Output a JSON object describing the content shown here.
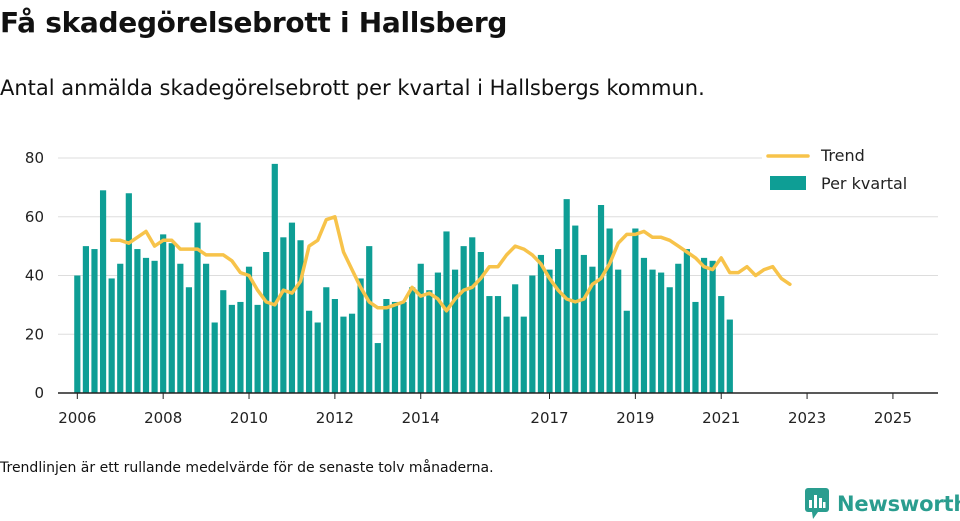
{
  "header": {
    "title": "Få skadegörelsebrott i Hallsberg",
    "subtitle": "Antal anmälda skadegörelsebrott per kvartal i Hallsbergs kommun."
  },
  "footer": {
    "note": "Trendlinjen är ett rullande medelvärde för de senaste tolv månaderna.",
    "brand": "Newsworthy"
  },
  "colors": {
    "bar": "#0e9e95",
    "trend": "#f7c34a",
    "grid": "#dddddd",
    "brand": "#2a9d8f"
  },
  "icons": {
    "brand_logo": "bar-chart-speech-bubble-icon"
  },
  "chart_data": {
    "type": "bar",
    "ylim": [
      0,
      80
    ],
    "yticks": [
      0,
      20,
      40,
      60,
      80
    ],
    "xlim": [
      2005.55,
      2026.05
    ],
    "xticks": [
      {
        "value": 2006,
        "label": "2006"
      },
      {
        "value": 2008,
        "label": "2008"
      },
      {
        "value": 2010,
        "label": "2010"
      },
      {
        "value": 2012,
        "label": "2012"
      },
      {
        "value": 2014,
        "label": "2014"
      },
      {
        "value": 2017,
        "label": "2017"
      },
      {
        "value": 2019,
        "label": "2019"
      },
      {
        "value": 2021,
        "label": "2021"
      },
      {
        "value": 2023,
        "label": "2023"
      },
      {
        "value": 2025,
        "label": "2025"
      }
    ],
    "grid": true,
    "legend_position": "top-right",
    "legend": [
      "Trend",
      "Per kvartal"
    ],
    "series": [
      {
        "name": "Per kvartal",
        "type": "bar",
        "start_year": 2006,
        "step": 0.2,
        "values": [
          40,
          50,
          49,
          69,
          39,
          44,
          68,
          49,
          46,
          45,
          54,
          51,
          44,
          36,
          58,
          44,
          24,
          35,
          30,
          31,
          43,
          30,
          48,
          78,
          53,
          58,
          52,
          28,
          24,
          36,
          32,
          26,
          27,
          39,
          50,
          17,
          32,
          31,
          31,
          36,
          44,
          35,
          41,
          55,
          42,
          50,
          53,
          48,
          33,
          33,
          26,
          37,
          26,
          40,
          47,
          42,
          49,
          66,
          57,
          47,
          43,
          64,
          56,
          42,
          28,
          56,
          46,
          42,
          41,
          36,
          44,
          49,
          31,
          46,
          45,
          33,
          25
        ]
      },
      {
        "name": "Trend",
        "type": "line",
        "points": [
          [
            2006.8,
            52
          ],
          [
            2007.0,
            52
          ],
          [
            2007.2,
            51
          ],
          [
            2007.4,
            53
          ],
          [
            2007.6,
            55
          ],
          [
            2007.8,
            50
          ],
          [
            2008.0,
            52
          ],
          [
            2008.2,
            52
          ],
          [
            2008.4,
            49
          ],
          [
            2008.6,
            49
          ],
          [
            2008.8,
            49
          ],
          [
            2009.0,
            47
          ],
          [
            2009.2,
            47
          ],
          [
            2009.4,
            47
          ],
          [
            2009.6,
            45
          ],
          [
            2009.8,
            41
          ],
          [
            2010.0,
            40
          ],
          [
            2010.2,
            35
          ],
          [
            2010.4,
            31
          ],
          [
            2010.6,
            30
          ],
          [
            2010.8,
            35
          ],
          [
            2011.0,
            34
          ],
          [
            2011.2,
            38
          ],
          [
            2011.4,
            50
          ],
          [
            2011.6,
            52
          ],
          [
            2011.8,
            59
          ],
          [
            2012.0,
            60
          ],
          [
            2012.2,
            48
          ],
          [
            2012.4,
            42
          ],
          [
            2012.6,
            36
          ],
          [
            2012.8,
            31
          ],
          [
            2013.0,
            29
          ],
          [
            2013.2,
            29
          ],
          [
            2013.4,
            30
          ],
          [
            2013.6,
            31
          ],
          [
            2013.8,
            36
          ],
          [
            2014.0,
            33
          ],
          [
            2014.2,
            34
          ],
          [
            2014.4,
            32
          ],
          [
            2014.6,
            28
          ],
          [
            2014.8,
            32
          ],
          [
            2015.0,
            35
          ],
          [
            2015.2,
            36
          ],
          [
            2015.4,
            39
          ],
          [
            2015.6,
            43
          ],
          [
            2015.8,
            43
          ],
          [
            2016.0,
            47
          ],
          [
            2016.2,
            50
          ],
          [
            2016.4,
            49
          ],
          [
            2016.6,
            47
          ],
          [
            2016.8,
            44
          ],
          [
            2017.0,
            39
          ],
          [
            2017.2,
            35
          ],
          [
            2017.4,
            32
          ],
          [
            2017.6,
            31
          ],
          [
            2017.8,
            32
          ],
          [
            2018.0,
            37
          ],
          [
            2018.2,
            39
          ],
          [
            2018.4,
            44
          ],
          [
            2018.6,
            51
          ],
          [
            2018.8,
            54
          ],
          [
            2019.0,
            54
          ],
          [
            2019.2,
            55
          ],
          [
            2019.4,
            53
          ],
          [
            2019.6,
            53
          ],
          [
            2019.8,
            52
          ],
          [
            2020.0,
            50
          ],
          [
            2020.2,
            48
          ],
          [
            2020.4,
            46
          ],
          [
            2020.6,
            43
          ],
          [
            2020.8,
            42
          ],
          [
            2021.0,
            46
          ],
          [
            2021.2,
            41
          ],
          [
            2021.4,
            41
          ],
          [
            2021.6,
            43
          ],
          [
            2021.8,
            40
          ],
          [
            2022.0,
            42
          ],
          [
            2022.2,
            43
          ],
          [
            2022.4,
            39
          ],
          [
            2022.6,
            37
          ]
        ]
      }
    ]
  }
}
